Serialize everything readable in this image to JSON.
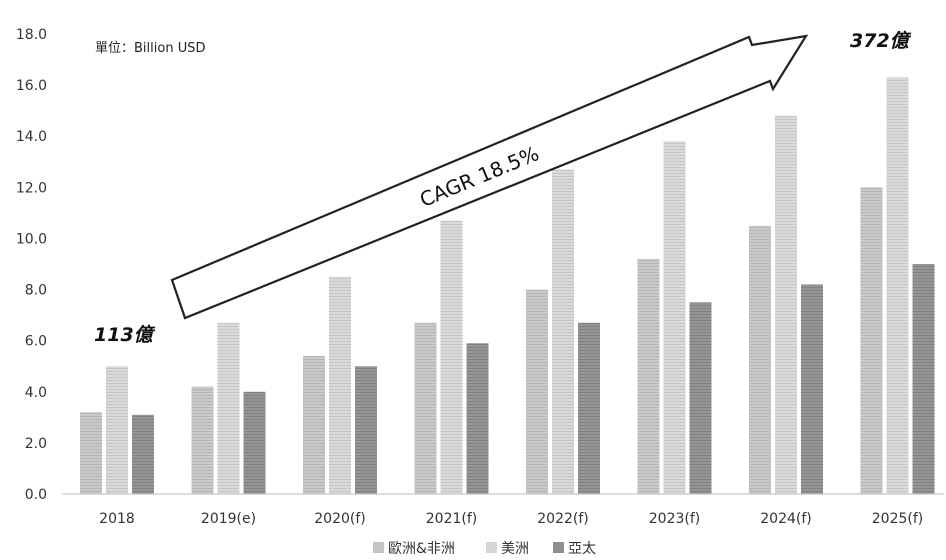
{
  "chart_data": {
    "type": "bar",
    "unit_note": "單位：Billion USD",
    "categories": [
      "2018",
      "2019(e)",
      "2020(f)",
      "2021(f)",
      "2022(f)",
      "2023(f)",
      "2024(f)",
      "2025(f)"
    ],
    "series": [
      {
        "name": "歐洲&非洲",
        "color": "#c4c4c4",
        "values": [
          3.2,
          4.2,
          5.4,
          6.7,
          8.0,
          9.2,
          10.5,
          12.0
        ]
      },
      {
        "name": "美洲",
        "color": "#d6d6d6",
        "values": [
          5.0,
          6.7,
          8.5,
          10.7,
          12.7,
          13.8,
          14.8,
          16.3
        ]
      },
      {
        "name": "亞太",
        "color": "#8f8f8f",
        "values": [
          3.1,
          4.0,
          5.0,
          5.9,
          6.7,
          7.5,
          8.2,
          9.0
        ]
      }
    ],
    "yticks": [
      "0.0",
      "2.0",
      "4.0",
      "6.0",
      "8.0",
      "10.0",
      "12.0",
      "14.0",
      "16.0",
      "18.0"
    ],
    "ylim": [
      0,
      18
    ],
    "annotations": {
      "start_total": "113億",
      "end_total": "372億",
      "growth": "CAGR 18.5%"
    },
    "legend_position": "bottom-center",
    "grid": false
  }
}
